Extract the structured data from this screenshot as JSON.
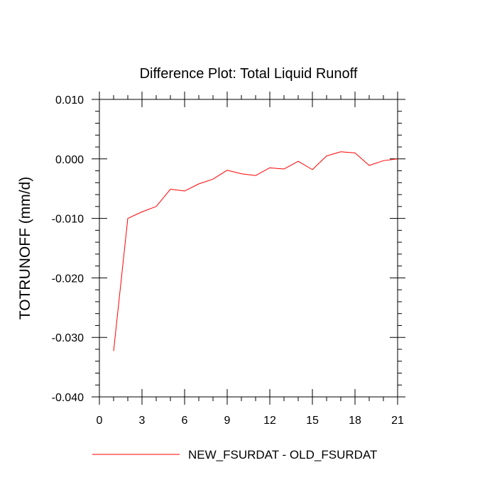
{
  "chart_data": {
    "type": "line",
    "title": "Difference Plot: Total Liquid Runoff",
    "xlabel": "",
    "ylabel": "TOTRUNOFF  (mm/d)",
    "xlim": [
      0,
      21
    ],
    "ylim": [
      -0.04,
      0.01
    ],
    "x_ticks": [
      0,
      3,
      6,
      9,
      12,
      15,
      18,
      21
    ],
    "x_tick_labels": [
      "0",
      "3",
      "6",
      "9",
      "12",
      "15",
      "18",
      "21"
    ],
    "y_ticks": [
      -0.04,
      -0.03,
      -0.02,
      -0.01,
      0.0,
      0.01
    ],
    "y_tick_labels": [
      "-0.040",
      "-0.030",
      "-0.020",
      "-0.010",
      "0.000",
      "0.010"
    ],
    "x_minor_step": 1,
    "y_minor_step": 0.002,
    "grid": false,
    "legend_position": "bottom",
    "series": [
      {
        "name": "NEW_FSURDAT - OLD_FSURDAT",
        "color": "#ff0000",
        "x": [
          1,
          2,
          3,
          4,
          5,
          6,
          7,
          8,
          9,
          10,
          11,
          12,
          13,
          14,
          15,
          16,
          17,
          18,
          19,
          20,
          21
        ],
        "values": [
          -0.0323,
          -0.01,
          -0.0089,
          -0.008,
          -0.0051,
          -0.0054,
          -0.0042,
          -0.0034,
          -0.0019,
          -0.0025,
          -0.0028,
          -0.0015,
          -0.0017,
          -0.0004,
          -0.0018,
          0.0005,
          0.0012,
          0.001,
          -0.0011,
          -0.0003,
          0.0
        ]
      }
    ]
  }
}
